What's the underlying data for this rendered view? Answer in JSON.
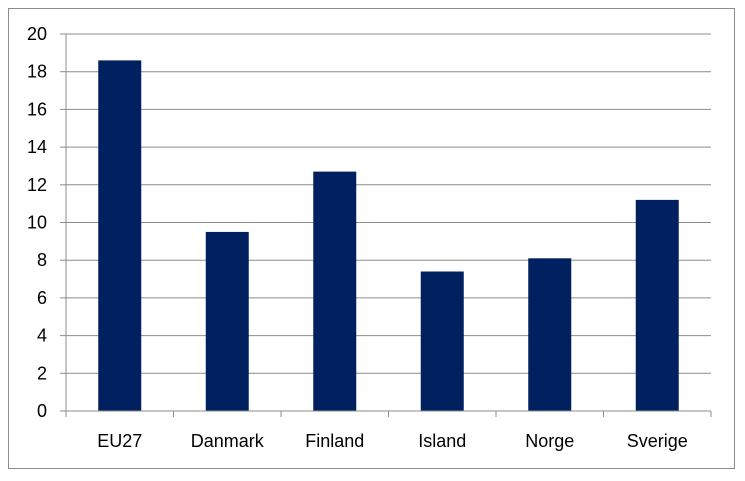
{
  "chart_data": {
    "type": "bar",
    "categories": [
      "EU27",
      "Danmark",
      "Finland",
      "Island",
      "Norge",
      "Sverige"
    ],
    "values": [
      18.6,
      9.5,
      12.7,
      7.4,
      8.1,
      11.2
    ],
    "title": "",
    "xlabel": "",
    "ylabel": "",
    "ylim": [
      0,
      20
    ],
    "yticks": [
      "0",
      "2",
      "4",
      "6",
      "8",
      "10",
      "12",
      "14",
      "16",
      "18",
      "20"
    ],
    "grid": true,
    "legend": "none",
    "bar_color": "#002060"
  }
}
